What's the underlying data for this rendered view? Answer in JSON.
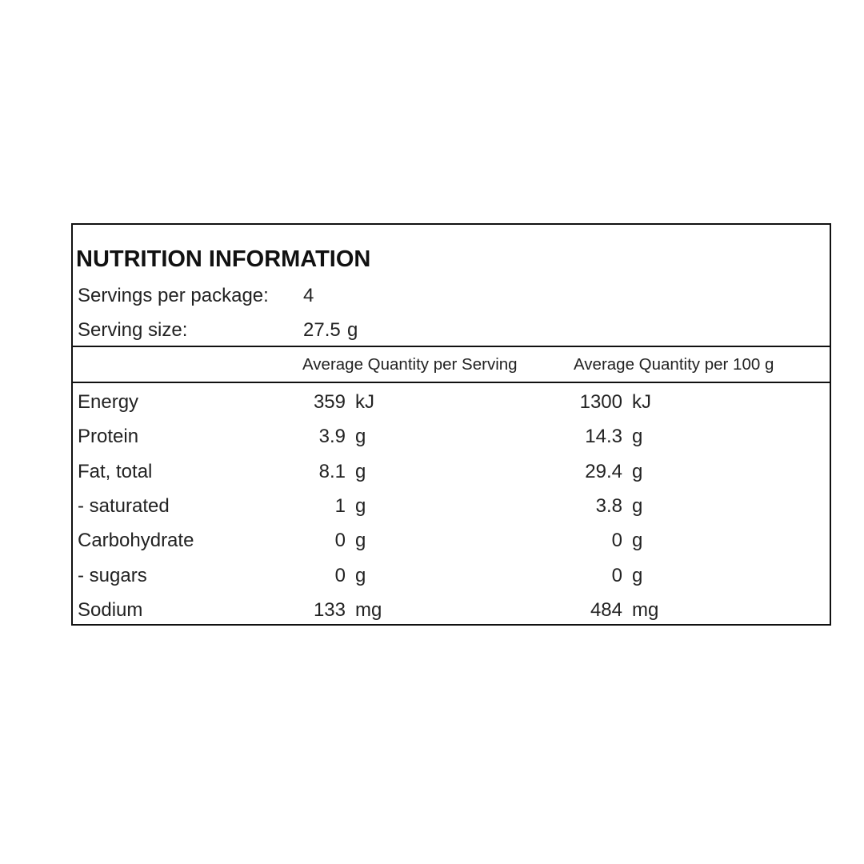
{
  "header": {
    "title": "NUTRITION INFORMATION"
  },
  "servings": {
    "label": "Servings per package:",
    "value": "4"
  },
  "serving_size": {
    "label": "Serving size:",
    "value": "27.5",
    "unit": "g"
  },
  "table": {
    "columns": [
      "Average Quantity per Serving",
      "Average Quantity per 100 g"
    ],
    "rows": [
      {
        "name": "Energy",
        "per_serving": "359",
        "per_serving_unit": "kJ",
        "per_100g": "1300",
        "per_100g_unit": "kJ"
      },
      {
        "name": "Protein",
        "per_serving": "3.9",
        "per_serving_unit": "g",
        "per_100g": "14.3",
        "per_100g_unit": "g"
      },
      {
        "name": "Fat, total",
        "per_serving": "8.1",
        "per_serving_unit": "g",
        "per_100g": "29.4",
        "per_100g_unit": "g"
      },
      {
        "name": "- saturated",
        "per_serving": "1",
        "per_serving_unit": "g",
        "per_100g": "3.8",
        "per_100g_unit": "g"
      },
      {
        "name": "Carbohydrate",
        "per_serving": "0",
        "per_serving_unit": "g",
        "per_100g": "0",
        "per_100g_unit": "g"
      },
      {
        "name": "- sugars",
        "per_serving": "0",
        "per_serving_unit": "g",
        "per_100g": "0",
        "per_100g_unit": "g"
      },
      {
        "name": "Sodium",
        "per_serving": "133",
        "per_serving_unit": "mg",
        "per_100g": "484",
        "per_100g_unit": "mg"
      }
    ]
  }
}
